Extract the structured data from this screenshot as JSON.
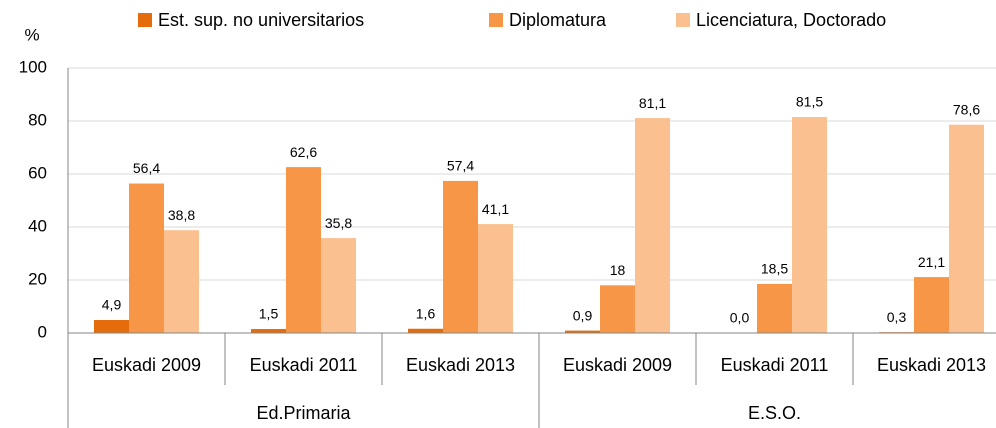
{
  "chart_data": {
    "type": "bar",
    "y_label": "%",
    "groups": [
      {
        "name": "Ed.Primaria",
        "categories": [
          "Euskadi 2009",
          "Euskadi 2011",
          "Euskadi 2013"
        ]
      },
      {
        "name": "E.S.O.",
        "categories": [
          "Euskadi 2009",
          "Euskadi 2011",
          "Euskadi 2013"
        ]
      }
    ],
    "series": [
      {
        "name": "Est. sup. no universitarios",
        "color": "#e46c0a",
        "values": [
          4.9,
          1.5,
          1.6,
          0.9,
          0.0,
          0.3
        ],
        "value_labels": [
          "4,9",
          "1,5",
          "1,6",
          "0,9",
          "0,0",
          "0,3"
        ]
      },
      {
        "name": "Diplomatura",
        "color": "#f79646",
        "values": [
          56.4,
          62.6,
          57.4,
          18,
          18.5,
          21.1
        ],
        "value_labels": [
          "56,4",
          "62,6",
          "57,4",
          "18",
          "18,5",
          "21,1"
        ]
      },
      {
        "name": "Licenciatura, Doctorado",
        "color": "#fac090",
        "values": [
          38.8,
          35.8,
          41.1,
          81.1,
          81.5,
          78.6
        ],
        "value_labels": [
          "38,8",
          "35,8",
          "41,1",
          "81,1",
          "81,5",
          "78,6"
        ]
      }
    ],
    "ylim": [
      0,
      100
    ],
    "yticks": [
      0,
      20,
      40,
      60,
      80,
      100
    ],
    "grid": true,
    "legend": "top"
  }
}
